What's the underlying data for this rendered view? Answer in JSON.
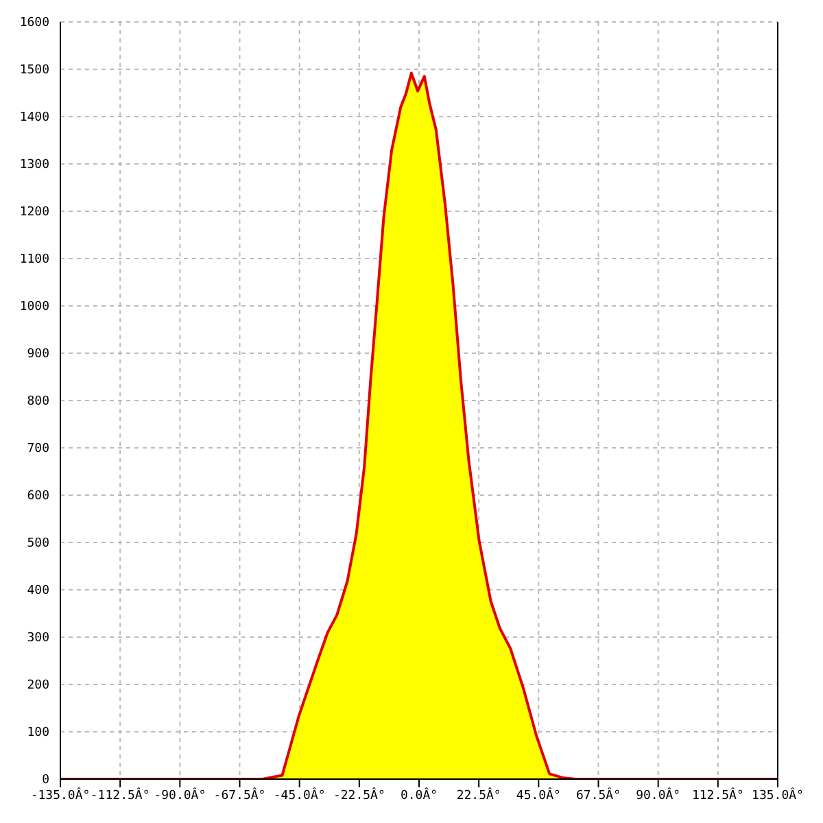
{
  "chart_data": {
    "type": "area",
    "x": [
      -135,
      -58.9,
      -51.5,
      -45.2,
      -38.3,
      -34.4,
      -30.9,
      -27,
      -23.6,
      -20.6,
      -18.2,
      -15.7,
      -13.3,
      -10.3,
      -6.9,
      -4.9,
      -2.9,
      -0.5,
      2,
      3.9,
      6.4,
      9.8,
      12.8,
      15.7,
      18.7,
      22.6,
      27,
      30.4,
      34.4,
      39.3,
      44.2,
      49.1,
      54,
      58.9,
      135
    ],
    "series": [
      {
        "color": "#ffff00",
        "values": [
          0,
          0,
          8,
          134,
          248,
          310,
          347,
          418,
          518,
          660,
          845,
          1016,
          1187,
          1329,
          1420,
          1449,
          1492,
          1454,
          1485,
          1429,
          1372,
          1215,
          1044,
          845,
          674,
          504,
          376,
          319,
          276,
          191,
          91,
          11,
          3,
          0,
          0
        ]
      }
    ],
    "xlim": [
      -135,
      135
    ],
    "xticks": [
      {
        "value": -135,
        "label": "-135.0Â°"
      },
      {
        "value": -112.5,
        "label": "-112.5Â°"
      },
      {
        "value": -90,
        "label": "-90.0Â°"
      },
      {
        "value": -67.5,
        "label": "-67.5Â°"
      },
      {
        "value": -45,
        "label": "-45.0Â°"
      },
      {
        "value": -22.5,
        "label": "-22.5Â°"
      },
      {
        "value": 0,
        "label": "0.0Â°"
      },
      {
        "value": 22.5,
        "label": "22.5Â°"
      },
      {
        "value": 45,
        "label": "45.0Â°"
      },
      {
        "value": 67.5,
        "label": "67.5Â°"
      },
      {
        "value": 90,
        "label": "90.0Â°"
      },
      {
        "value": 112.5,
        "label": "112.5Â°"
      },
      {
        "value": 135,
        "label": "135.0Â°"
      }
    ],
    "ylim": [
      0,
      1600
    ],
    "yticks": [
      0,
      100,
      200,
      300,
      400,
      500,
      600,
      700,
      800,
      900,
      1000,
      1100,
      1200,
      1300,
      1400,
      1500,
      1600
    ],
    "grid": true
  }
}
